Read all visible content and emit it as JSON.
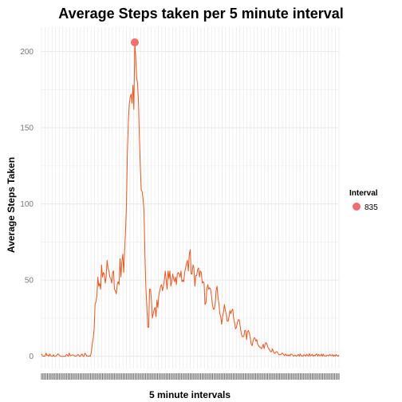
{
  "chart_data": {
    "type": "line",
    "title": "Average Steps taken per 5 minute interval",
    "xlabel": "5 minute intervals",
    "ylabel": "Average Steps Taken",
    "ylim": [
      -8,
      216
    ],
    "yticks": [
      0,
      50,
      100,
      150,
      200
    ],
    "x_ticks_labeled": false,
    "grid": true,
    "colors": {
      "line": "#e8561f",
      "highlight": "#f07070",
      "grid": "#ebebeb",
      "tick": "#666666"
    },
    "series": [
      {
        "values": [
          1.7,
          0.3,
          0.1,
          0.2,
          0.1,
          2.1,
          0.5,
          0.9,
          0.0,
          1.5,
          0.3,
          0.2,
          0.0,
          1.1,
          0.0,
          0.0,
          0.3,
          1.1,
          1.6,
          0.9,
          0.2,
          0.0,
          0.0,
          0.0,
          0.0,
          0.0,
          0.0,
          1.2,
          0.7,
          0.0,
          2.1,
          0.3,
          0.5,
          0.8,
          0.9,
          0.8,
          0.0,
          0.3,
          0.2,
          0.9,
          1.1,
          0.0,
          0.0,
          1.0,
          1.5,
          0.0,
          0.0,
          2.0,
          1.3,
          0.1,
          0.3,
          0.0,
          0.3,
          0.0,
          3.0,
          8.4,
          11.9,
          18.0,
          34.0,
          36.0,
          40.0,
          52.0,
          46.0,
          48.0,
          44.0,
          60.0,
          52.0,
          55.0,
          54.0,
          48.0,
          52.0,
          63.0,
          58.0,
          56.0,
          52.0,
          51.0,
          48.0,
          55.0,
          56.0,
          44.0,
          43.0,
          41.0,
          47.0,
          49.0,
          47.0,
          64.0,
          52.0,
          62.0,
          67.0,
          55.0,
          70.0,
          82.0,
          100.0,
          134.0,
          154.0,
          165.0,
          170.0,
          172.0,
          166.0,
          178.0,
          162.0,
          206.0,
          196.0,
          183.0,
          179.0,
          167.0,
          143.0,
          124.0,
          109.0,
          108.0,
          103.0,
          95.0,
          66.0,
          45.0,
          33.0,
          19.0,
          19.0,
          44.0,
          44.0,
          37.0,
          25.0,
          28.0,
          31.0,
          32.0,
          26.0,
          37.0,
          32.0,
          40.0,
          43.0,
          46.0,
          47.0,
          43.0,
          46.0,
          50.0,
          56.0,
          50.0,
          44.0,
          56.0,
          51.0,
          56.0,
          46.0,
          49.0,
          54.0,
          51.0,
          49.0,
          52.0,
          47.0,
          54.0,
          55.0,
          54.0,
          52.0,
          56.0,
          49.0,
          50.0,
          49.0,
          55.0,
          58.0,
          61.0,
          63.0,
          56.0,
          67.0,
          70.0,
          54.0,
          54.0,
          60.0,
          58.0,
          46.0,
          53.0,
          53.0,
          57.0,
          58.0,
          52.0,
          56.0,
          55.0,
          48.0,
          49.0,
          48.0,
          34.0,
          35.0,
          44.0,
          47.0,
          44.0,
          45.0,
          44.0,
          40.0,
          34.0,
          31.0,
          31.0,
          34.0,
          43.0,
          46.0,
          39.0,
          35.0,
          28.0,
          26.0,
          21.0,
          26.0,
          29.0,
          34.0,
          30.0,
          28.0,
          23.0,
          23.0,
          26.0,
          30.0,
          28.0,
          30.0,
          31.0,
          25.0,
          22.0,
          18.0,
          19.0,
          22.0,
          24.0,
          24.0,
          20.0,
          16.0,
          13.0,
          13.0,
          13.0,
          17.0,
          17.0,
          11.0,
          16.0,
          17.0,
          15.0,
          12.0,
          8.0,
          7.0,
          10.0,
          12.0,
          12.0,
          10.0,
          11.0,
          8.0,
          7.0,
          6.0,
          6.0,
          5.0,
          6.0,
          8.0,
          5.0,
          8.0,
          9.0,
          8.0,
          6.0,
          5.0,
          4.0,
          3.0,
          3.0,
          5.0,
          3.0,
          2.0,
          2.0,
          3.0,
          3.0,
          2.0,
          1.0,
          1.0,
          1.0,
          2.0,
          2.0,
          1.0,
          0.5,
          1.5,
          0.4,
          0.9,
          0.3,
          1.0,
          0.2,
          1.5,
          1.2,
          0.6,
          0.0,
          0.8,
          0.5,
          0.0,
          0.6,
          1.2,
          0.0,
          1.6,
          0.3,
          0.4,
          0.0,
          1.1,
          0.7,
          0.1,
          1.4,
          0.5,
          0.0,
          1.7,
          0.2,
          0.7,
          1.3,
          0.0,
          0.8,
          0.2,
          1.2,
          1.6,
          0.1,
          1.3,
          0.4,
          0.3,
          1.5,
          0.0,
          1.4,
          0.2,
          0.4,
          0.0,
          0.8,
          0.6,
          0.3,
          1.3,
          0.5,
          0.4,
          1.1,
          0.0,
          0.8,
          0.1,
          1.2,
          0.5,
          0.0,
          0.9
        ],
        "peak_index": 101
      }
    ],
    "legend": {
      "title": "Interval",
      "items": [
        {
          "label": "835"
        }
      ],
      "placement": "right"
    }
  }
}
